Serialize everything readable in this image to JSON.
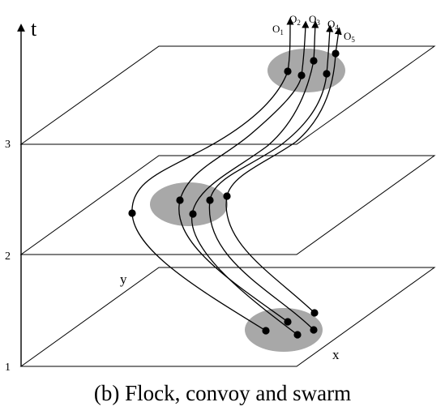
{
  "axis": {
    "t_label": "t",
    "x_label": "x",
    "y_label": "y"
  },
  "levels": [
    "1",
    "2",
    "3"
  ],
  "objects": [
    {
      "label": "O",
      "sub": "1"
    },
    {
      "label": "O",
      "sub": "2"
    },
    {
      "label": "O",
      "sub": "3"
    },
    {
      "label": "O",
      "sub": "4"
    },
    {
      "label": "O",
      "sub": "5"
    }
  ],
  "caption": "(b) Flock, convoy and swarm",
  "colors": {
    "cluster": "#a8a8a8",
    "line": "#000000"
  }
}
